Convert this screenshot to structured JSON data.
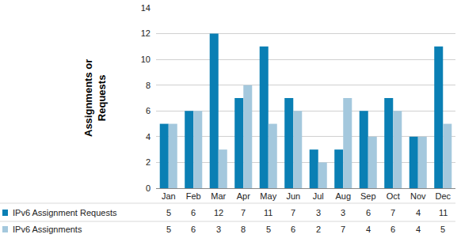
{
  "chart_data": {
    "type": "bar",
    "y_label": "Assignments or Requests",
    "categories": [
      "Jan",
      "Feb",
      "Mar",
      "Apr",
      "May",
      "Jun",
      "Jul",
      "Aug",
      "Sep",
      "Oct",
      "Nov",
      "Dec"
    ],
    "series": [
      {
        "name": "IPv6 Assignment Requests",
        "color": "#0a7fb4",
        "values": [
          5,
          6,
          12,
          7,
          11,
          7,
          3,
          3,
          6,
          7,
          4,
          11
        ]
      },
      {
        "name": "IPv6 Assignments",
        "color": "#a4c8dd",
        "values": [
          5,
          6,
          3,
          8,
          5,
          6,
          2,
          7,
          4,
          6,
          4,
          5
        ]
      }
    ],
    "ylim": [
      0,
      14
    ],
    "yticks": [
      0,
      2,
      4,
      6,
      8,
      10,
      12,
      14
    ],
    "grid": true
  }
}
